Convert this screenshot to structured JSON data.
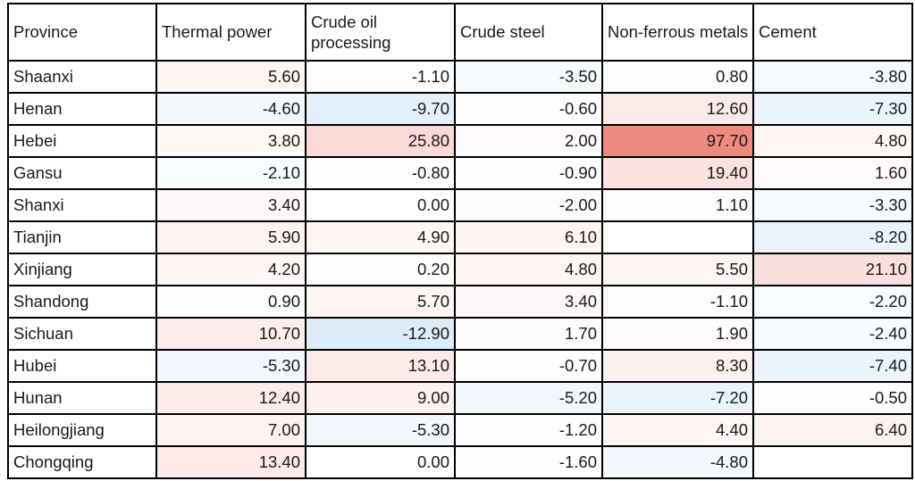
{
  "chart_data": {
    "type": "table",
    "subtype": "heatmap-conditional-formatting",
    "columns": [
      "Province",
      "Thermal power",
      "Crude oil processing",
      "Crude steel",
      "Non-ferrous metals",
      "Cement"
    ],
    "rows": [
      {
        "province": "Shaanxi",
        "values": [
          5.6,
          -1.1,
          -3.5,
          0.8,
          -3.8
        ]
      },
      {
        "province": "Henan",
        "values": [
          -4.6,
          -9.7,
          -0.6,
          12.6,
          -7.3
        ]
      },
      {
        "province": "Hebei",
        "values": [
          3.8,
          25.8,
          2.0,
          97.7,
          4.8
        ]
      },
      {
        "province": "Gansu",
        "values": [
          -2.1,
          -0.8,
          -0.9,
          19.4,
          1.6
        ]
      },
      {
        "province": "Shanxi",
        "values": [
          3.4,
          0.0,
          -2.0,
          1.1,
          -3.3
        ]
      },
      {
        "province": "Tianjin",
        "values": [
          5.9,
          4.9,
          6.1,
          null,
          -8.2
        ]
      },
      {
        "province": "Xinjiang",
        "values": [
          4.2,
          0.2,
          4.8,
          5.5,
          21.1
        ]
      },
      {
        "province": "Shandong",
        "values": [
          0.9,
          5.7,
          3.4,
          -1.1,
          -2.2
        ]
      },
      {
        "province": "Sichuan",
        "values": [
          10.7,
          -12.9,
          1.7,
          1.9,
          -2.4
        ]
      },
      {
        "province": "Hubei",
        "values": [
          -5.3,
          13.1,
          -0.7,
          8.3,
          -7.4
        ]
      },
      {
        "province": "Hunan",
        "values": [
          12.4,
          9.0,
          -5.2,
          -7.2,
          -0.5
        ]
      },
      {
        "province": "Heilongjiang",
        "values": [
          7.0,
          -5.3,
          -1.2,
          4.4,
          6.4
        ]
      },
      {
        "province": "Chongqing",
        "values": [
          13.4,
          0.0,
          -1.6,
          -4.8,
          null
        ]
      }
    ],
    "value_format": "two-decimals",
    "color_scale": {
      "positive_full_color": "#ef8a80",
      "negative_full_color": "#dcecf9",
      "neutral_color": "#ffffff",
      "positive_max": 97.7,
      "negative_min": -12.9,
      "border_color": "#000000",
      "text_color": "#1a1a1a"
    }
  }
}
